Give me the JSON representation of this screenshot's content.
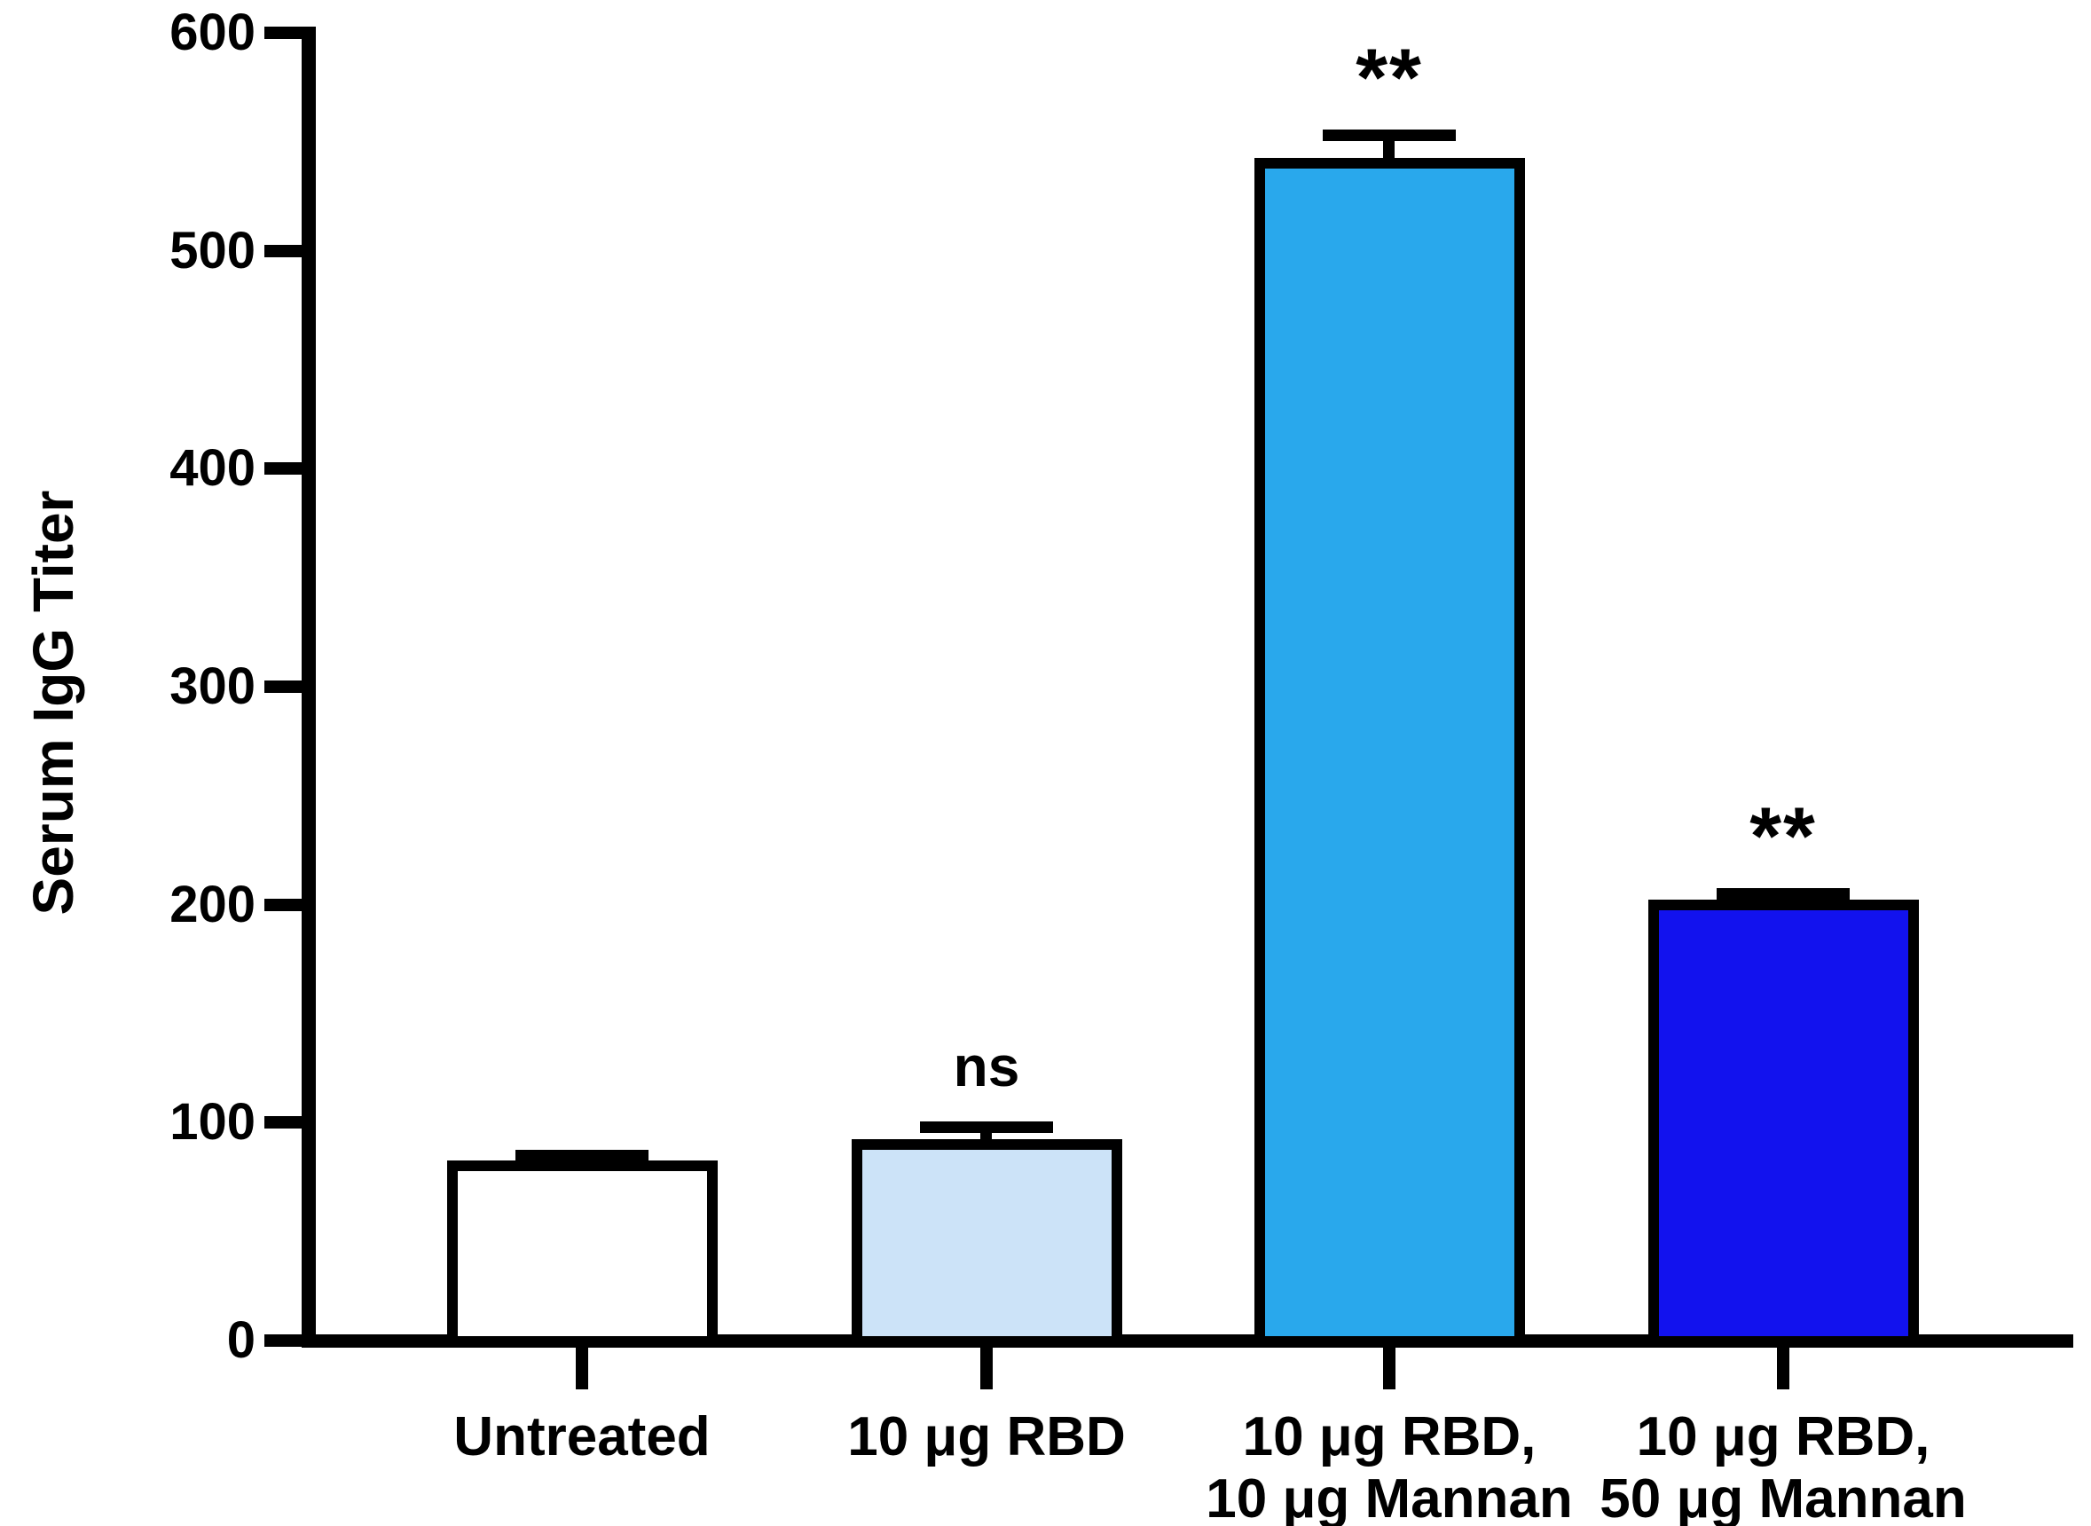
{
  "chart_data": {
    "type": "bar",
    "title": "",
    "ylabel": "Serum IgG Titer",
    "xlabel": "",
    "ylim": [
      0,
      600
    ],
    "yticks": [
      0,
      100,
      200,
      300,
      400,
      500,
      600
    ],
    "grid": false,
    "legend": "none",
    "categories": [
      "Untreated",
      "10 μg RBD",
      "10 μg RBD, 10 μg Mannan",
      "10 μg RBD, 50 μg Mannan"
    ],
    "category_lines": [
      [
        "Untreated"
      ],
      [
        "10 μg RBD"
      ],
      [
        "10 μg RBD,",
        "10 μg Mannan"
      ],
      [
        "10 μg RBD,",
        "50 μg Mannan"
      ]
    ],
    "values": [
      80,
      90,
      540,
      200
    ],
    "errors_upper": [
      5,
      8,
      13,
      5
    ],
    "significance": [
      "",
      "ns",
      "**",
      "**"
    ],
    "bar_colors": [
      "#FFFFFF",
      "#CCE3F8",
      "#29A8EC",
      "#1212EE"
    ],
    "bar_border_color": "#000000",
    "axis_color": "#000000"
  }
}
